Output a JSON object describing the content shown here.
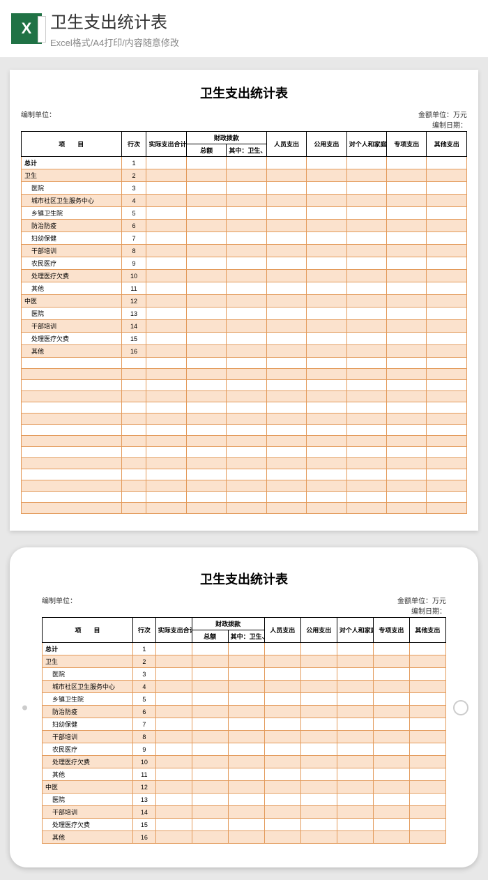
{
  "topbar": {
    "title": "卫生支出统计表",
    "subtitle": "Excel格式/A4打印/内容随意修改"
  },
  "table": {
    "title": "卫生支出统计表",
    "meta_left": "编制单位：",
    "meta_right_1": "金额单位：万元",
    "meta_right_2": "编制日期：",
    "header": {
      "item": "项　　目",
      "seq": "行次",
      "actual": "实际支出合计",
      "fiscal_group": "财政拨款",
      "fiscal_total": "总额",
      "fiscal_sub": "其中：卫生、中医事业经费",
      "personnel": "人员支出",
      "public": "公用支出",
      "subsidy": "对个人和家庭的补助支出",
      "special": "专项支出",
      "other": "其他支出"
    },
    "rows": [
      {
        "seq": "1",
        "label": "总计",
        "indent": 0,
        "bold": true
      },
      {
        "seq": "2",
        "label": "卫生",
        "indent": 0
      },
      {
        "seq": "3",
        "label": "医院",
        "indent": 1
      },
      {
        "seq": "4",
        "label": "城市社区卫生服务中心",
        "indent": 1
      },
      {
        "seq": "5",
        "label": "乡镇卫生院",
        "indent": 1
      },
      {
        "seq": "6",
        "label": "防治防疫",
        "indent": 1
      },
      {
        "seq": "7",
        "label": "妇幼保健",
        "indent": 1
      },
      {
        "seq": "8",
        "label": "干部培训",
        "indent": 1
      },
      {
        "seq": "9",
        "label": "农民医疗",
        "indent": 1
      },
      {
        "seq": "10",
        "label": "处理医疗欠费",
        "indent": 1
      },
      {
        "seq": "11",
        "label": "其他",
        "indent": 1
      },
      {
        "seq": "12",
        "label": "中医",
        "indent": 0
      },
      {
        "seq": "13",
        "label": "医院",
        "indent": 1
      },
      {
        "seq": "14",
        "label": "干部培训",
        "indent": 1
      },
      {
        "seq": "15",
        "label": "处理医疗欠费",
        "indent": 1
      },
      {
        "seq": "16",
        "label": "其他",
        "indent": 1
      }
    ],
    "blank_rows": 14,
    "styling": {
      "odd_row_bg": "#fbe2cd",
      "even_row_bg": "#ffffff",
      "border_color": "#e39a5a",
      "header_border": "#000000",
      "title_fontsize": 18,
      "cell_fontsize": 9
    }
  }
}
